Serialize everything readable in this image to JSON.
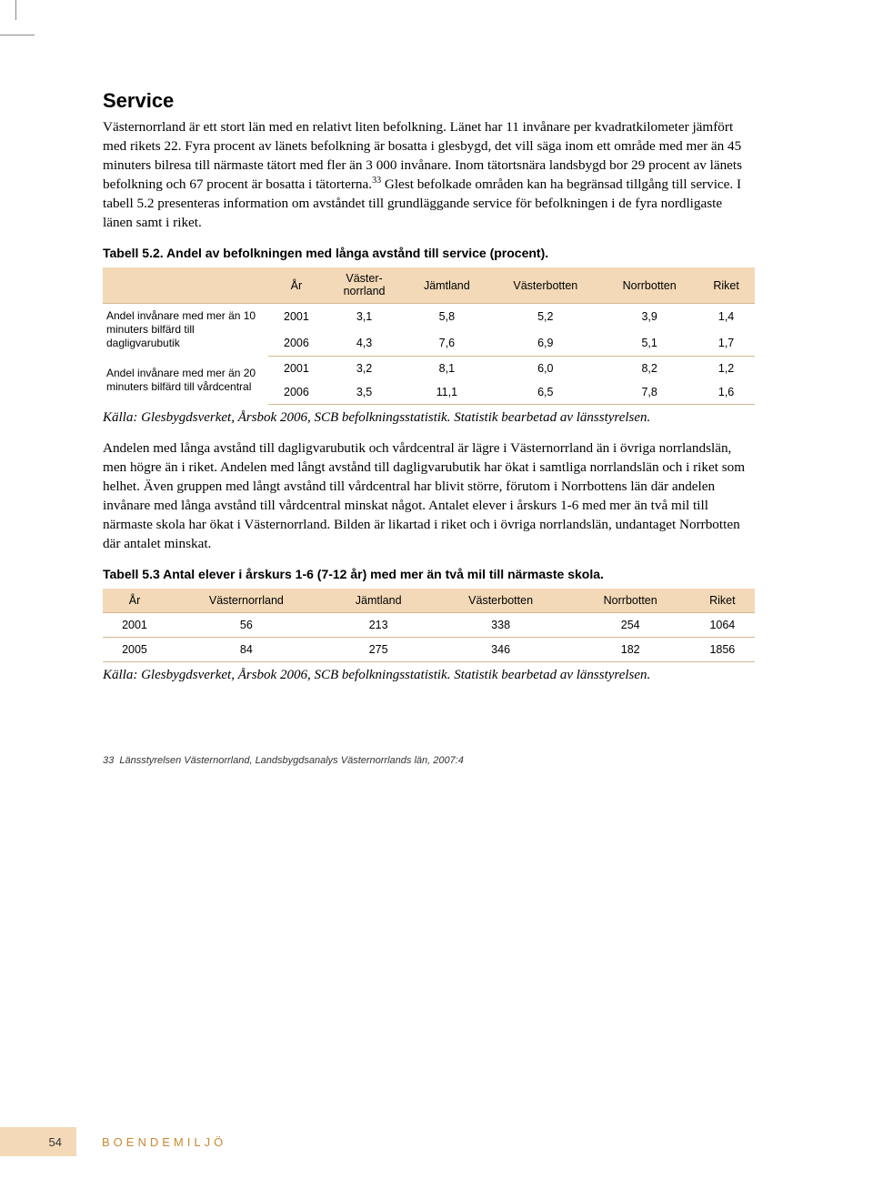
{
  "heading": "Service",
  "para1": "Västernorrland är ett stort län med en relativt liten befolkning. Länet har 11 invånare per kvadratkilometer jämfört med rikets 22. Fyra procent av länets befolkning är bosatta i glesbygd, det vill säga inom ett område med mer än 45 minuters bilresa till närmaste tätort med fler än 3 000 invånare. Inom tätortsnära landsbygd bor 29 procent av länets befolkning och 67 procent är bosatta i tätorterna.",
  "para1_sup": "33",
  "para1_tail": " Glest befolkade områden kan ha begränsad tillgång till service. I tabell 5.2 presenteras information om avståndet till grundläggande service för befolkningen i de fyra nordligaste länen samt i riket.",
  "caption52": "Tabell 5.2. Andel av befolkningen med långa avstånd till service (procent).",
  "t52": {
    "header_bg": "#f3d9b8",
    "columns": [
      "År",
      "Väster-\nnorrland",
      "Jämtland",
      "Västerbotten",
      "Norrbotten",
      "Riket"
    ],
    "groups": [
      {
        "label": "Andel invånare med mer än 10 minuters bilfärd till dagligvarubutik",
        "rows": [
          [
            "2001",
            "3,1",
            "5,8",
            "5,2",
            "3,9",
            "1,4"
          ],
          [
            "2006",
            "4,3",
            "7,6",
            "6,9",
            "5,1",
            "1,7"
          ]
        ]
      },
      {
        "label": "Andel invånare med mer än 20 minuters bilfärd till vårdcentral",
        "rows": [
          [
            "2001",
            "3,2",
            "8,1",
            "6,0",
            "8,2",
            "1,2"
          ],
          [
            "2006",
            "3,5",
            "11,1",
            "6,5",
            "7,8",
            "1,6"
          ]
        ]
      }
    ]
  },
  "source52": "Källa: Glesbygdsverket, Årsbok 2006, SCB befolkningsstatistik. Statistik bearbetad av länsstyrelsen.",
  "para2": "Andelen med långa avstånd till dagligvarubutik och vårdcentral är lägre i Västernorrland än i övriga norrlandslän, men högre än i riket. Andelen med långt avstånd till dagligvarubutik har ökat i samtliga norrlandslän och i riket som helhet. Även gruppen med långt avstånd till vårdcentral har blivit större, förutom i Norrbottens län där andelen invånare med långa avstånd till vårdcentral minskat något. Antalet elever i årskurs 1-6 med mer än två mil till närmaste skola har ökat i Västernorrland. Bilden är likartad i riket och i övriga norrlandslän, undantaget Norrbotten där antalet minskat.",
  "caption53": "Tabell 5.3 Antal elever i årskurs 1-6 (7-12 år) med mer än två mil till närmaste skola.",
  "t53": {
    "header_bg": "#f3d9b8",
    "columns": [
      "År",
      "Västernorrland",
      "Jämtland",
      "Västerbotten",
      "Norrbotten",
      "Riket"
    ],
    "rows": [
      [
        "2001",
        "56",
        "213",
        "338",
        "254",
        "1064"
      ],
      [
        "2005",
        "84",
        "275",
        "346",
        "182",
        "1856"
      ]
    ]
  },
  "source53": "Källa: Glesbygdsverket, Årsbok 2006, SCB befolkningsstatistik. Statistik bearbetad av länsstyrelsen.",
  "footnote_num": "33",
  "footnote": "Länsstyrelsen Västernorrland, Landsbygdsanalys Västernorrlands län, 2007:4",
  "page_number": "54",
  "section_label": "BOENDEMILJÖ"
}
